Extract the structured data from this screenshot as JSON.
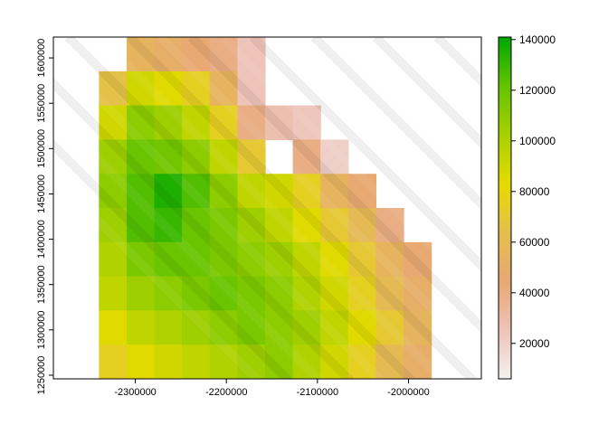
{
  "chart_data": {
    "type": "heatmap",
    "title": "",
    "xlabel": "",
    "ylabel": "",
    "xlim": [
      -2390000,
      -1920000
    ],
    "ylim": [
      1246000,
      1623000
    ],
    "x_ticks": [
      -2300000,
      -2200000,
      -2100000,
      -2000000
    ],
    "x_tick_labels": [
      "-2300000",
      "-2200000",
      "-2100000",
      "-2000000"
    ],
    "y_ticks": [
      1250000,
      1300000,
      1350000,
      1400000,
      1450000,
      1500000,
      1550000,
      1600000
    ],
    "y_tick_labels": [
      "1250000",
      "1300000",
      "1350000",
      "1400000",
      "1450000",
      "1500000",
      "1550000",
      "1600000"
    ],
    "colorbar": {
      "ticks": [
        20000,
        40000,
        60000,
        80000,
        100000,
        120000,
        140000
      ],
      "tick_labels": [
        "20000",
        "40000",
        "60000",
        "80000",
        "100000",
        "120000",
        "140000"
      ],
      "range": [
        6000,
        141000
      ],
      "colors": [
        "#f2f2f2",
        "#eec3b8",
        "#e8a873",
        "#e4bf4d",
        "#e6db00",
        "#a7d100",
        "#64c300",
        "#00a600"
      ]
    },
    "raster": {
      "cols": 12,
      "rows": 10,
      "x_range": [
        -2340000,
        -1975000
      ],
      "y_range": [
        1246000,
        1623000
      ],
      "values": [
        [
          null,
          55000,
          50000,
          45000,
          40000,
          25000,
          null,
          null,
          null,
          null,
          null,
          null
        ],
        [
          65000,
          90000,
          85000,
          75000,
          55000,
          25000,
          null,
          null,
          null,
          null,
          null,
          null
        ],
        [
          90000,
          110000,
          105000,
          95000,
          75000,
          40000,
          28000,
          24000,
          null,
          null,
          null,
          null
        ],
        [
          105000,
          120000,
          118000,
          110000,
          95000,
          70000,
          null,
          40000,
          20000,
          null,
          null,
          null
        ],
        [
          110000,
          125000,
          135000,
          125000,
          110000,
          95000,
          90000,
          75000,
          55000,
          45000,
          null,
          null
        ],
        [
          105000,
          125000,
          130000,
          120000,
          115000,
          105000,
          95000,
          85000,
          70000,
          60000,
          40000,
          null
        ],
        [
          100000,
          115000,
          120000,
          120000,
          115000,
          110000,
          105000,
          95000,
          85000,
          70000,
          55000,
          45000
        ],
        [
          95000,
          105000,
          110000,
          115000,
          120000,
          115000,
          110000,
          100000,
          90000,
          75000,
          60000,
          50000
        ],
        [
          85000,
          95000,
          100000,
          105000,
          110000,
          115000,
          110000,
          105000,
          95000,
          85000,
          70000,
          55000
        ],
        [
          75000,
          85000,
          90000,
          95000,
          100000,
          105000,
          110000,
          100000,
          90000,
          75000,
          60000,
          50000
        ]
      ]
    }
  }
}
